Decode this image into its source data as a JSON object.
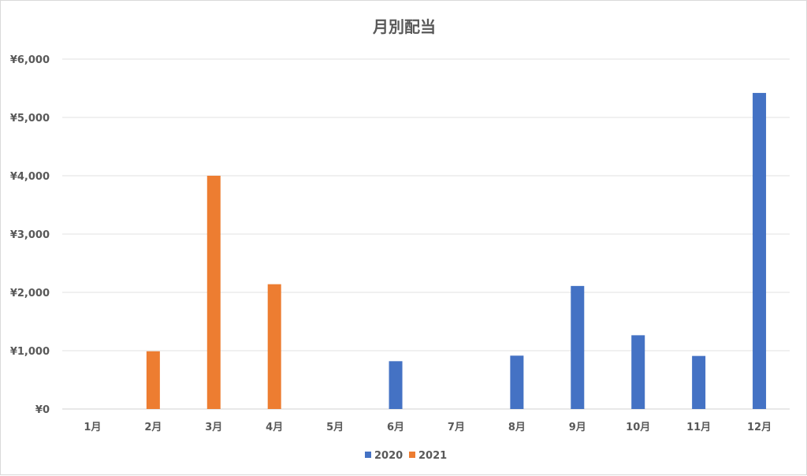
{
  "chart_data": {
    "type": "bar",
    "title": "月別配当",
    "categories": [
      "1月",
      "2月",
      "3月",
      "4月",
      "5月",
      "6月",
      "7月",
      "8月",
      "9月",
      "10月",
      "11月",
      "12月"
    ],
    "series": [
      {
        "name": "2020",
        "color": "#4472C4",
        "values": [
          0,
          0,
          0,
          0,
          0,
          820,
          0,
          915,
          2110,
          1265,
          910,
          5420
        ]
      },
      {
        "name": "2021",
        "color": "#ED7D31",
        "values": [
          0,
          990,
          4000,
          2140,
          0,
          0,
          0,
          0,
          0,
          0,
          0,
          0
        ]
      }
    ],
    "ylim": [
      0,
      6000
    ],
    "yticks": [
      0,
      1000,
      2000,
      3000,
      4000,
      5000,
      6000
    ],
    "ytick_labels": [
      "¥0",
      "¥1,000",
      "¥2,000",
      "¥3,000",
      "¥4,000",
      "¥5,000",
      "¥6,000"
    ],
    "grid": true,
    "legend_position": "bottom"
  }
}
